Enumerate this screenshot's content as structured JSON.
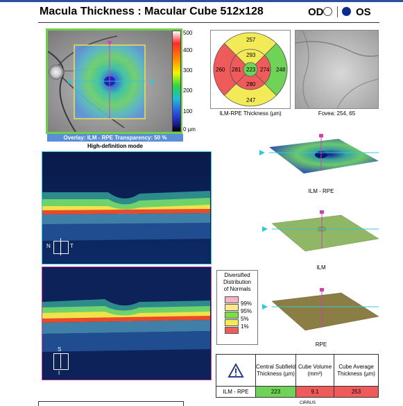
{
  "header": {
    "title": "Macula Thickness : Macular Cube 512x128",
    "od_label": "OD",
    "os_label": "OS"
  },
  "fundus": {
    "overlay_caption": "Overlay: ILM - RPE  Transparency: 50 %",
    "mode_caption": "High-definition mode",
    "scale_labels": [
      "500",
      "400",
      "300",
      "200",
      "100",
      "0 µm"
    ]
  },
  "etdrs": {
    "caption": "ILM-RPE Thickness (µm)",
    "superior_outer": "257",
    "superior_inner": "293",
    "nasal_outer": "260",
    "nasal_inner": "281",
    "central": "223",
    "temporal_inner": "274",
    "temporal_outer": "248",
    "inferior_inner": "280",
    "inferior_outer": "247"
  },
  "fovea": {
    "caption": "Fovea: 254, 65"
  },
  "bscan1": {
    "orient_left": "N",
    "orient_right": "T"
  },
  "bscan2": {
    "orient_top": "S",
    "orient_bottom": "I"
  },
  "surfaces": {
    "ilm_rpe_label": "ILM - RPE",
    "ilm_label": "ILM",
    "rpe_label": "RPE"
  },
  "legend": {
    "title_lines": [
      "Diversified",
      "Distribution",
      "of Normals"
    ],
    "levels": [
      {
        "label": "99%",
        "color": "#f4b6c2"
      },
      {
        "label": "95%",
        "color": "#fde98a"
      },
      {
        "label": "5%",
        "color": "#7ddc4a"
      },
      {
        "label": "1%",
        "color": "#f3ea58"
      },
      {
        "label": "",
        "color": "#ef5a5a"
      }
    ]
  },
  "summary_table": {
    "headers": [
      "Central Subfield Thickness (µm)",
      "Cube Volume (mm³)",
      "Cube Average Thickness (µm)"
    ],
    "row_label": "ILM - RPE",
    "values": [
      "223",
      "9.1",
      "253"
    ],
    "value_colors": [
      "#6fd357",
      "#ef5a5a",
      "#ef5a5a"
    ]
  },
  "footer": {
    "partial_text": "CIRRUS"
  }
}
